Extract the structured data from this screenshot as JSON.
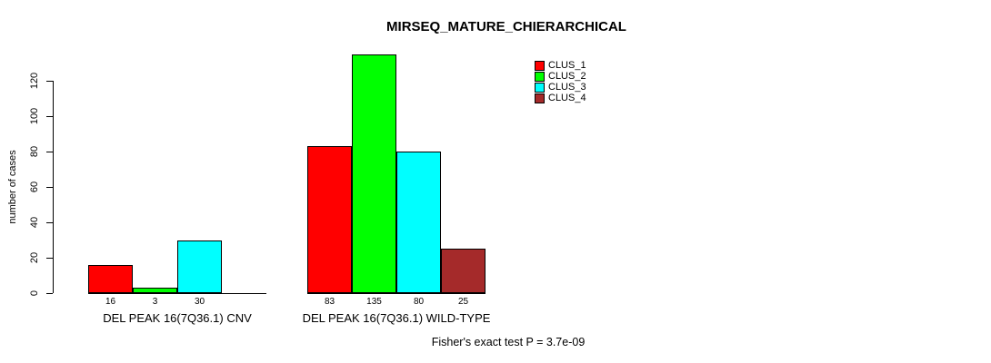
{
  "chart_data": {
    "type": "bar",
    "title": "MIRSEQ_MATURE_CHIERARCHICAL",
    "ylabel": "number of cases",
    "xlabel": "",
    "yticks": [
      0,
      20,
      40,
      60,
      80,
      100,
      120
    ],
    "ylim": [
      0,
      140
    ],
    "grid": false,
    "legend_position": "top-right",
    "series": [
      {
        "name": "CLUS_1",
        "color": "#FF0000"
      },
      {
        "name": "CLUS_2",
        "color": "#00FF00"
      },
      {
        "name": "CLUS_3",
        "color": "#00FFFF"
      },
      {
        "name": "CLUS_4",
        "color": "#A52A2A"
      }
    ],
    "groups": [
      {
        "label": "DEL PEAK 16(7Q36.1) CNV",
        "values": [
          16,
          3,
          30,
          0
        ]
      },
      {
        "label": "DEL PEAK 16(7Q36.1) WILD-TYPE",
        "values": [
          83,
          135,
          80,
          25
        ]
      }
    ],
    "footnote": "Fisher's exact test P = 3.7e-09"
  }
}
